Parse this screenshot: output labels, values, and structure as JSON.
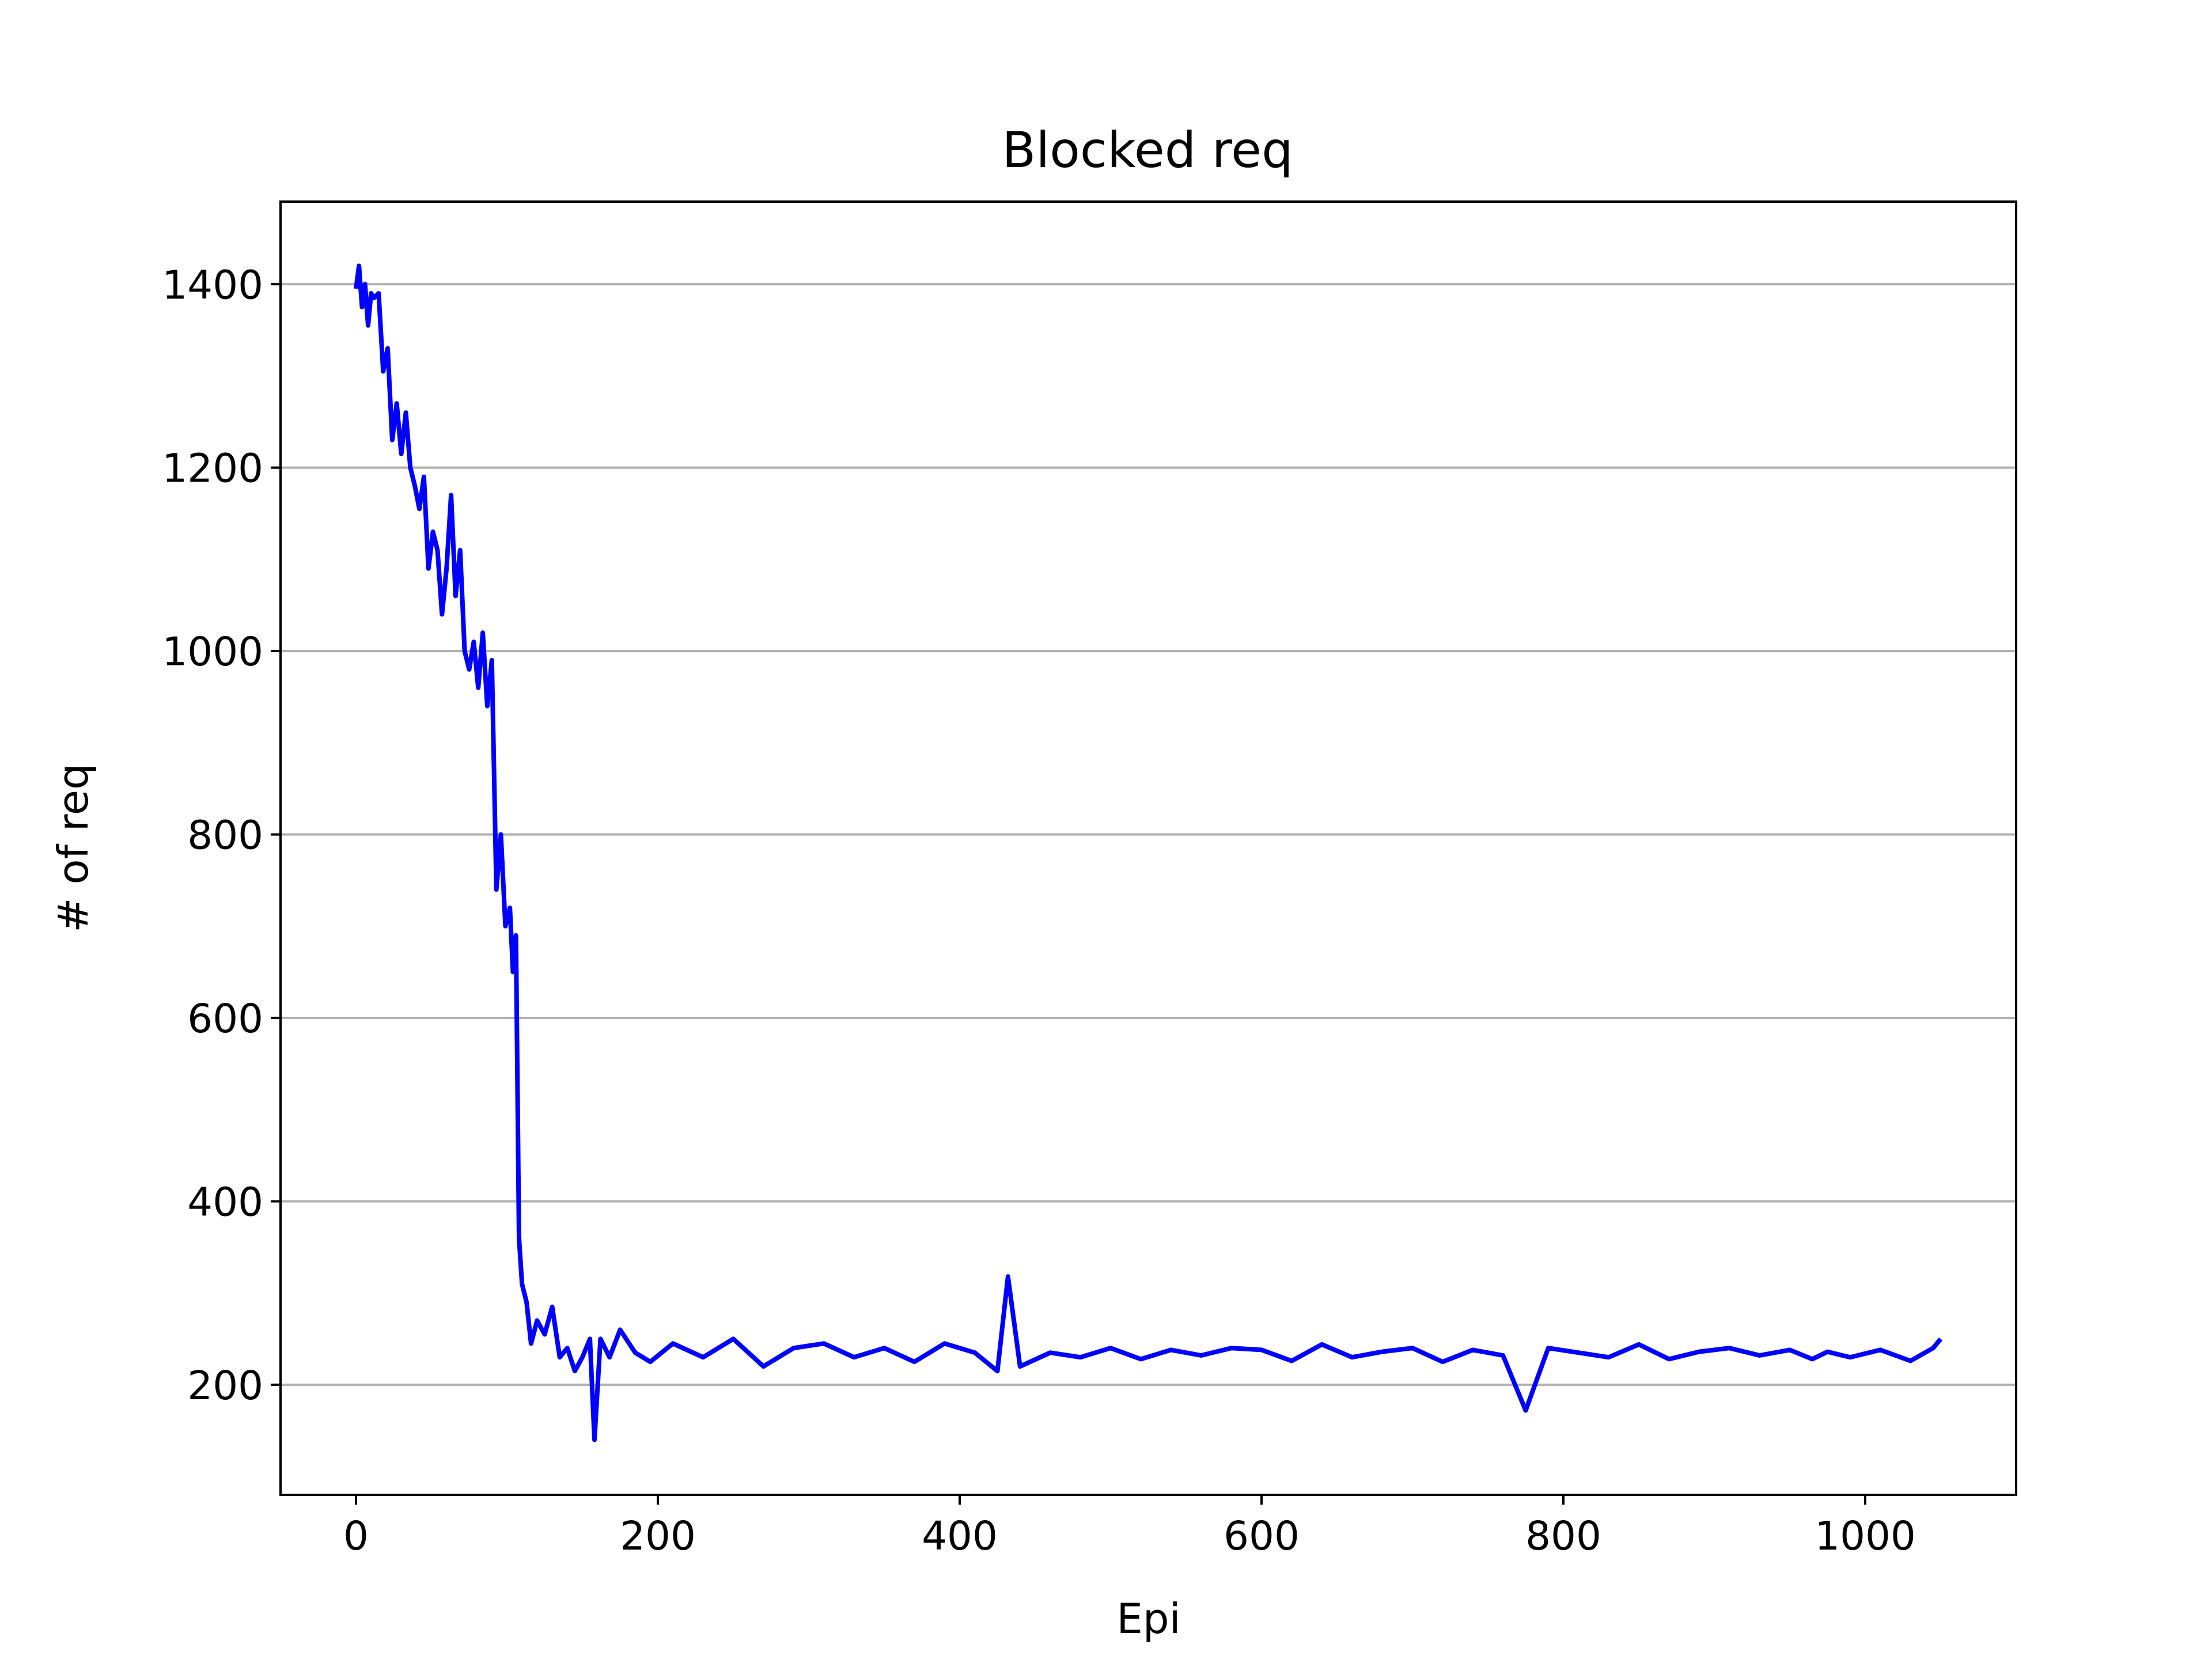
{
  "chart_data": {
    "type": "line",
    "title": "Blocked req",
    "xlabel": "Epi",
    "ylabel": "# of req",
    "xlim": [
      -50,
      1100
    ],
    "ylim": [
      80,
      1490
    ],
    "xticks": [
      0,
      200,
      400,
      600,
      800,
      1000
    ],
    "yticks": [
      200,
      400,
      600,
      800,
      1000,
      1200,
      1400
    ],
    "grid": "y",
    "legend": "none",
    "series": [
      {
        "color": "#0000ff",
        "x": [
          0,
          2,
          4,
          6,
          8,
          10,
          12,
          15,
          18,
          21,
          24,
          27,
          30,
          33,
          36,
          39,
          42,
          45,
          48,
          51,
          54,
          57,
          60,
          63,
          66,
          69,
          72,
          75,
          78,
          81,
          84,
          87,
          90,
          93,
          96,
          99,
          102,
          104,
          106,
          108,
          110,
          113,
          116,
          120,
          125,
          130,
          135,
          140,
          145,
          150,
          155,
          158,
          162,
          168,
          175,
          185,
          195,
          210,
          230,
          250,
          270,
          290,
          310,
          330,
          350,
          370,
          390,
          410,
          425,
          432,
          440,
          460,
          480,
          500,
          520,
          540,
          560,
          580,
          600,
          620,
          640,
          660,
          680,
          700,
          720,
          740,
          760,
          775,
          790,
          810,
          830,
          850,
          870,
          890,
          910,
          930,
          950,
          965,
          975,
          990,
          1010,
          1030,
          1045,
          1050
        ],
        "y": [
          1395,
          1420,
          1375,
          1400,
          1355,
          1390,
          1385,
          1390,
          1305,
          1330,
          1230,
          1270,
          1215,
          1260,
          1200,
          1180,
          1155,
          1190,
          1090,
          1130,
          1110,
          1040,
          1090,
          1170,
          1060,
          1110,
          1000,
          980,
          1010,
          960,
          1020,
          940,
          990,
          740,
          800,
          700,
          720,
          650,
          690,
          360,
          310,
          290,
          245,
          270,
          255,
          285,
          230,
          240,
          215,
          230,
          250,
          140,
          250,
          230,
          260,
          235,
          225,
          245,
          230,
          250,
          220,
          240,
          245,
          230,
          240,
          225,
          245,
          235,
          215,
          318,
          220,
          235,
          230,
          240,
          228,
          238,
          232,
          240,
          238,
          226,
          244,
          230,
          236,
          240,
          225,
          238,
          232,
          172,
          240,
          235,
          230,
          244,
          228,
          236,
          240,
          232,
          238,
          228,
          236,
          230,
          238,
          226,
          240,
          250
        ]
      }
    ]
  }
}
